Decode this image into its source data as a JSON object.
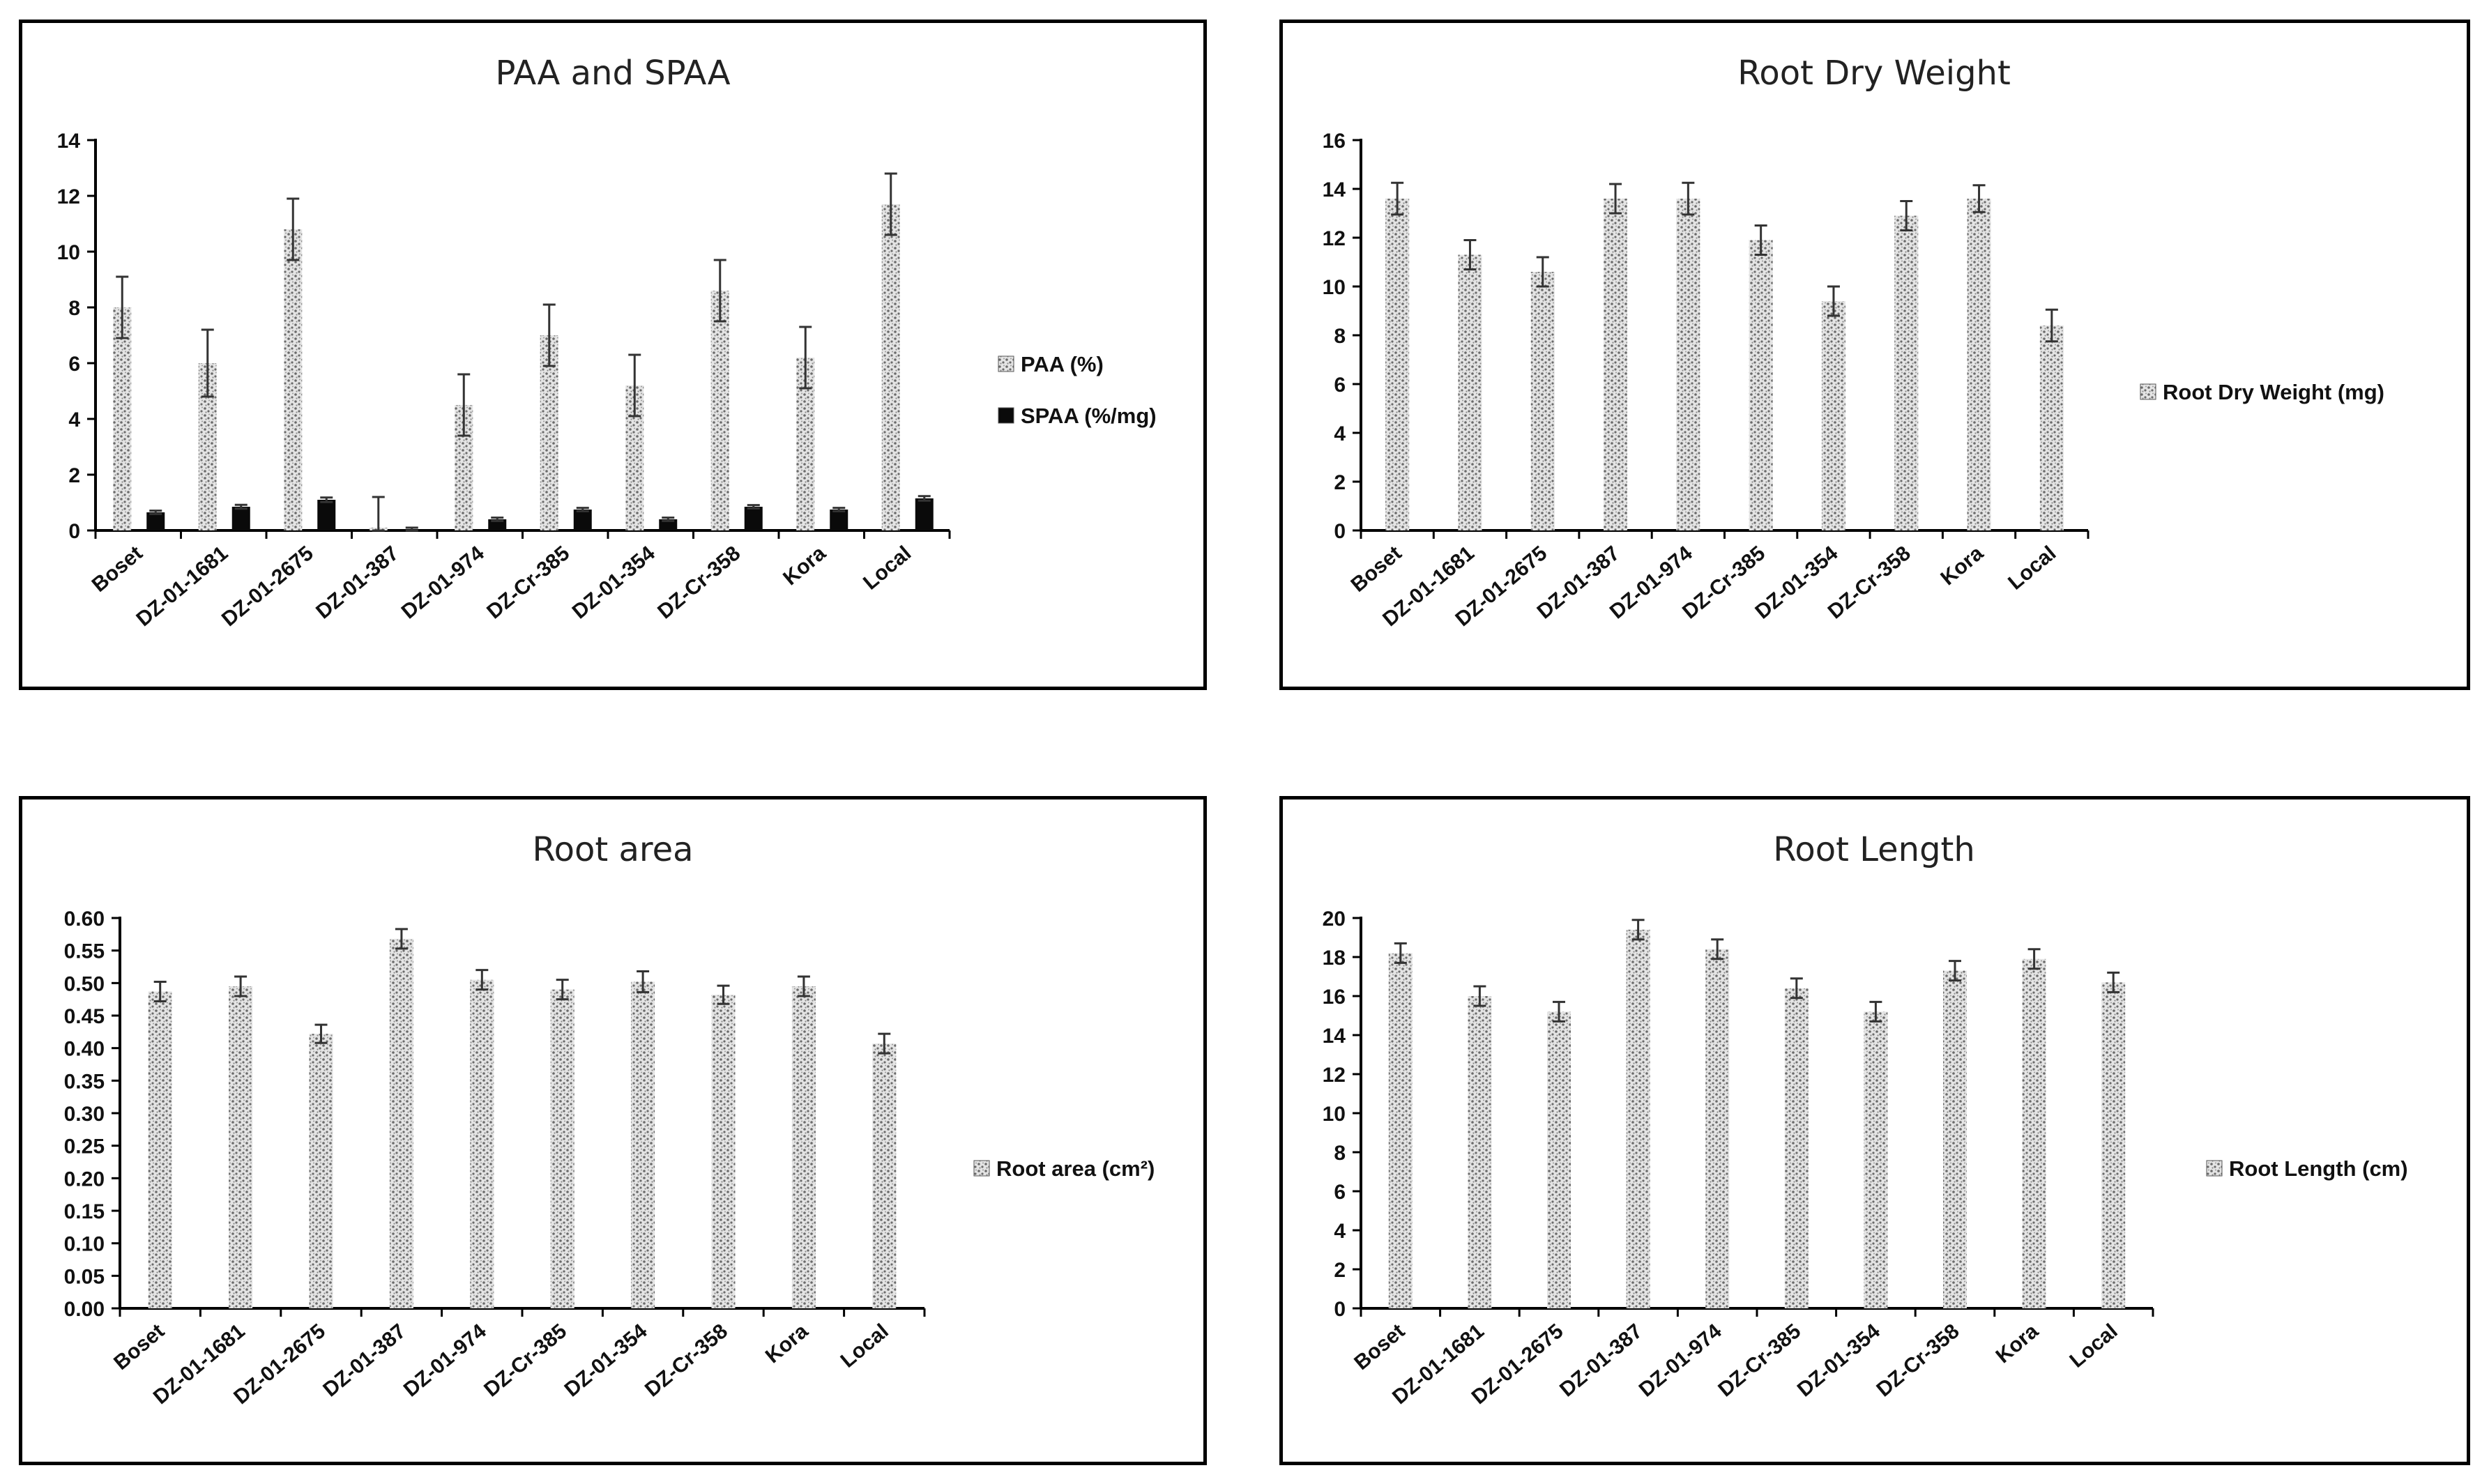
{
  "colors": {
    "texture_light": "#e4e4e4",
    "texture_dark": "#6a6a6a",
    "spaa": "#0a0a0a",
    "axis": "#000000",
    "error": "#333333"
  },
  "chart_data": [
    {
      "type": "bar",
      "title": "PAA and SPAA",
      "categories": [
        "Boset",
        "DZ-01-1681",
        "DZ-01-2675",
        "DZ-01-387",
        "DZ-01-974",
        "DZ-Cr-385",
        "DZ-01-354",
        "DZ-Cr-358",
        "Kora",
        "Local"
      ],
      "ylim": [
        0,
        14
      ],
      "yticks": [
        "0",
        "2",
        "4",
        "6",
        "8",
        "10",
        "12",
        "14"
      ],
      "xlabel": "",
      "ylabel": "",
      "series": [
        {
          "name": "PAA (%)",
          "values": [
            8.0,
            6.0,
            10.8,
            0.1,
            4.5,
            7.0,
            5.2,
            8.6,
            6.2,
            11.7
          ],
          "errors": [
            1.1,
            1.2,
            1.1,
            1.1,
            1.1,
            1.1,
            1.1,
            1.1,
            1.1,
            1.1
          ],
          "style": "texture"
        },
        {
          "name": "SPAA (%/mg)",
          "values": [
            0.65,
            0.85,
            1.1,
            0.0,
            0.4,
            0.75,
            0.4,
            0.85,
            0.75,
            1.15
          ],
          "errors": [
            0.06,
            0.07,
            0.08,
            0.1,
            0.06,
            0.06,
            0.06,
            0.06,
            0.06,
            0.08
          ],
          "style": "solid"
        }
      ],
      "legend": "right"
    },
    {
      "type": "bar",
      "title": "Root Dry Weight",
      "categories": [
        "Boset",
        "DZ-01-1681",
        "DZ-01-2675",
        "DZ-01-387",
        "DZ-01-974",
        "DZ-Cr-385",
        "DZ-01-354",
        "DZ-Cr-358",
        "Kora",
        "Local"
      ],
      "ylim": [
        0,
        16
      ],
      "yticks": [
        "0",
        "2",
        "4",
        "6",
        "8",
        "10",
        "12",
        "14",
        "16"
      ],
      "xlabel": "",
      "ylabel": "",
      "series": [
        {
          "name": "Root Dry Weight (mg)",
          "values": [
            13.6,
            11.3,
            10.6,
            13.6,
            13.6,
            11.9,
            9.4,
            12.9,
            13.6,
            8.4
          ],
          "errors": [
            0.65,
            0.6,
            0.6,
            0.6,
            0.65,
            0.6,
            0.6,
            0.6,
            0.55,
            0.65
          ],
          "style": "texture"
        }
      ],
      "legend": "right"
    },
    {
      "type": "bar",
      "title": "Root area",
      "categories": [
        "Boset",
        "DZ-01-1681",
        "DZ-01-2675",
        "DZ-01-387",
        "DZ-01-974",
        "DZ-Cr-385",
        "DZ-01-354",
        "DZ-Cr-358",
        "Kora",
        "Local"
      ],
      "ylim": [
        0,
        0.6
      ],
      "yticks": [
        "0.00",
        "0.05",
        "0.10",
        "0.15",
        "0.20",
        "0.25",
        "0.30",
        "0.35",
        "0.40",
        "0.45",
        "0.50",
        "0.55",
        "0.60"
      ],
      "xlabel": "",
      "ylabel": "",
      "series": [
        {
          "name": "Root area (cm²)",
          "values": [
            0.487,
            0.495,
            0.422,
            0.568,
            0.505,
            0.49,
            0.502,
            0.482,
            0.495,
            0.407
          ],
          "errors": [
            0.015,
            0.015,
            0.014,
            0.015,
            0.015,
            0.015,
            0.016,
            0.014,
            0.015,
            0.015
          ],
          "style": "texture"
        }
      ],
      "legend": "right"
    },
    {
      "type": "bar",
      "title": "Root Length",
      "categories": [
        "Boset",
        "DZ-01-1681",
        "DZ-01-2675",
        "DZ-01-387",
        "DZ-01-974",
        "DZ-Cr-385",
        "DZ-01-354",
        "DZ-Cr-358",
        "Kora",
        "Local"
      ],
      "ylim": [
        0,
        20
      ],
      "yticks": [
        "0",
        "2",
        "4",
        "6",
        "8",
        "10",
        "12",
        "14",
        "16",
        "18",
        "20"
      ],
      "xlabel": "",
      "ylabel": "",
      "series": [
        {
          "name": "Root Length (cm)",
          "values": [
            18.2,
            16.0,
            15.2,
            19.4,
            18.4,
            16.4,
            15.2,
            17.3,
            17.9,
            16.7
          ],
          "errors": [
            0.5,
            0.5,
            0.5,
            0.5,
            0.5,
            0.5,
            0.5,
            0.5,
            0.5,
            0.5
          ],
          "style": "texture"
        }
      ],
      "legend": "right"
    }
  ]
}
